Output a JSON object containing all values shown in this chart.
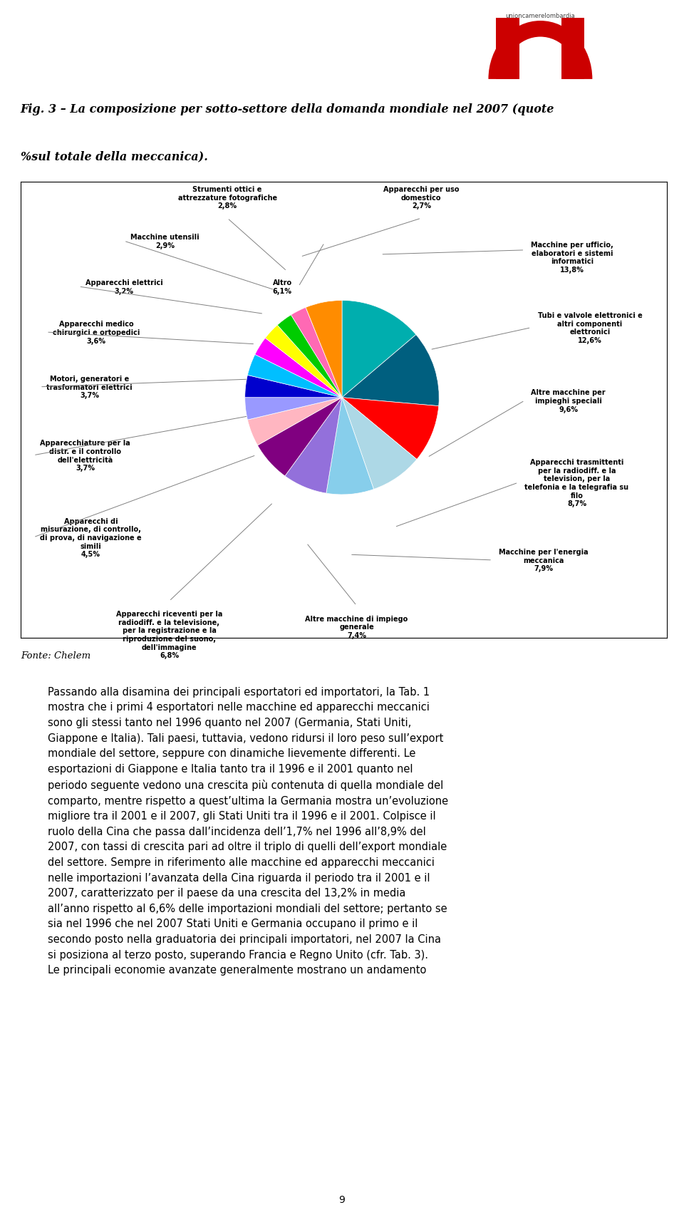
{
  "title_line1": "Fig. 3 – La composizione per sotto-settore della domanda mondiale nel 2007 (quote",
  "title_line2": "%sul totale della meccanica).",
  "fonte": "Fonte: Chelem",
  "page_number": "9",
  "slices": [
    {
      "label": "Macchine per ufficio,\nelaboratori e sistemi\ninformatici",
      "value": 13.8,
      "color": "#00AEAE"
    },
    {
      "label": "Tubi e valvole elettronici e\naltri componenti\nelettronici",
      "value": 12.6,
      "color": "#005F7F"
    },
    {
      "label": "Altre macchine per\nimpieghi speciali",
      "value": 9.6,
      "color": "#FF0000"
    },
    {
      "label": "Apparecchi trasmittenti\nper la radiodiff. e la\ntelevision, per la\ntelefonia e la telegrafia su\nfilo",
      "value": 8.7,
      "color": "#ADD8E6"
    },
    {
      "label": "Macchine per l'energia\nmeccanica",
      "value": 7.9,
      "color": "#87CEEB"
    },
    {
      "label": "Altre macchine di impiego\ngenerale",
      "value": 7.4,
      "color": "#9370DB"
    },
    {
      "label": "Apparecchi riceventi per la\nradiodiff. e la televisione,\nper la registrazione e la\nriproduzione del suono,\ndell'immagine",
      "value": 6.8,
      "color": "#800080"
    },
    {
      "label": "Apparecchi di\nmisurazione, di controllo,\ndi prova, di navigazione e\nsimili",
      "value": 4.5,
      "color": "#FFB6C1"
    },
    {
      "label": "Apparecchiature per la\ndistr. e il controllo\ndell'elettricità",
      "value": 3.7,
      "color": "#9999FF"
    },
    {
      "label": "Motori, generatori e\ntrasformatori elettrici",
      "value": 3.7,
      "color": "#0000CD"
    },
    {
      "label": "Apparecchi medico\nchirurgici e ortopedici",
      "value": 3.6,
      "color": "#00BFFF"
    },
    {
      "label": "Apparecchi elettrici",
      "value": 3.2,
      "color": "#FF00FF"
    },
    {
      "label": "Macchine utensili",
      "value": 2.9,
      "color": "#FFFF00"
    },
    {
      "label": "Strumenti ottici e\nattrezzature fotografiche",
      "value": 2.8,
      "color": "#00CC00"
    },
    {
      "label": "Apparecchi per uso\ndomestico",
      "value": 2.7,
      "color": "#FF69B4"
    },
    {
      "label": "Altro",
      "value": 6.1,
      "color": "#FF8C00"
    }
  ],
  "body_text": "Passando alla disamina dei principali esportatori ed importatori, la Tab. 1\nmostra che i primi 4 esportatori nelle macchine ed apparecchi meccanici\nsono gli stessi tanto nel 1996 quanto nel 2007 (Germania, Stati Uniti,\nGiappone e Italia). Tali paesi, tuttavia, vedono ridursi il loro peso sull’export\nmondiale del settore, seppure con dinamiche lievemente differenti. Le\nesportazioni di Giappone e Italia tanto tra il 1996 e il 2001 quanto nel\nperiodo seguente vedono una crescita più contenuta di quella mondiale del\ncomparto, mentre rispetto a quest’ultima la Germania mostra un’evoluzione\nmigliore tra il 2001 e il 2007, gli Stati Uniti tra il 1996 e il 2001. Colpisce il\nruolo della Cina che passa dall’incidenza dell’1,7% nel 1996 all’8,9% del\n2007, con tassi di crescita pari ad oltre il triplo di quelli dell’export mondiale\ndel settore. Sempre in riferimento alle macchine ed apparecchi meccanici\nnelle importazioni l’avanzata della Cina riguarda il periodo tra il 2001 e il\n2007, caratterizzato per il paese da una crescita del 13,2% in media\nall’anno rispetto al 6,6% delle importazioni mondiali del settore; pertanto se\nsia nel 1996 che nel 2007 Stati Uniti e Germania occupano il primo e il\nsecondo posto nella graduatoria dei principali importatori, nel 2007 la Cina\nsi posiziona al terzo posto, superando Francia e Regno Unito (cfr. Tab. 3).\nLe principali economie avanzate generalmente mostrano un andamento"
}
